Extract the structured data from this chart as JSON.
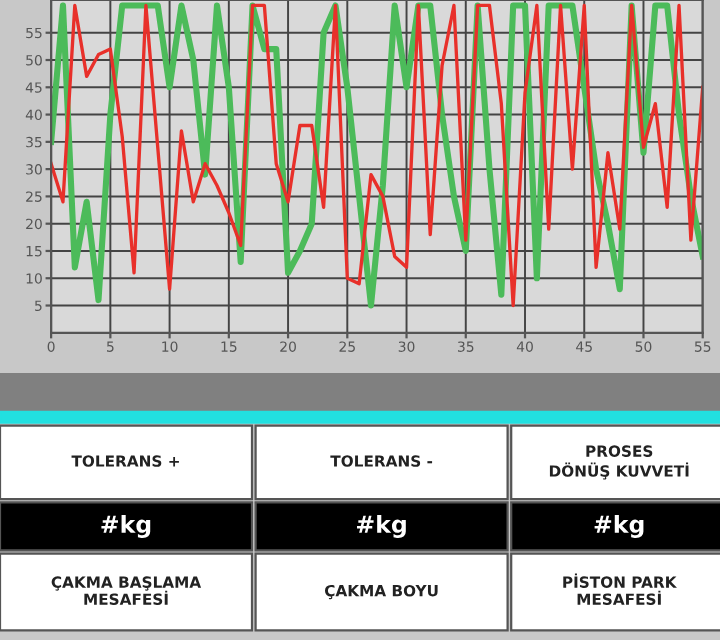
{
  "chart_data": {
    "type": "line",
    "x": [
      0,
      1,
      2,
      3,
      4,
      5,
      6,
      7,
      8,
      9,
      10,
      11,
      12,
      13,
      14,
      15,
      16,
      17,
      18,
      19,
      20,
      21,
      22,
      23,
      24,
      25,
      26,
      27,
      28,
      29,
      30,
      31,
      32,
      33,
      34,
      35,
      36,
      37,
      38,
      39,
      40,
      41,
      42,
      43,
      44,
      45,
      46,
      47,
      48,
      49,
      50,
      51,
      52,
      53,
      54,
      55
    ],
    "series": [
      {
        "color": "#4cbb5a",
        "values": [
          35,
          60,
          12,
          24,
          6,
          40,
          60,
          60,
          60,
          60,
          45,
          60,
          50,
          29,
          60,
          45,
          13,
          60,
          52,
          52,
          11,
          15,
          20,
          55,
          60,
          45,
          25,
          5,
          27,
          60,
          45,
          60,
          60,
          40,
          25,
          15,
          60,
          30,
          7,
          60,
          60,
          10,
          60,
          60,
          60,
          45,
          30,
          20,
          8,
          60,
          33,
          60,
          60,
          40,
          25,
          14
        ]
      },
      {
        "color": "#e8302a",
        "values": [
          31,
          24,
          60,
          47,
          51,
          52,
          36,
          11,
          60,
          34,
          8,
          37,
          24,
          31,
          27,
          22,
          16,
          60,
          60,
          31,
          24,
          38,
          38,
          23,
          60,
          10,
          9,
          29,
          25,
          14,
          12,
          60,
          18,
          49,
          60,
          17,
          60,
          60,
          42,
          5,
          44,
          60,
          19,
          60,
          30,
          60,
          12,
          33,
          19,
          60,
          34,
          42,
          23,
          60,
          17,
          45
        ]
      }
    ],
    "xlim": [
      0,
      55
    ],
    "ylim": [
      0,
      61
    ],
    "xticks": [
      0,
      5,
      10,
      15,
      20,
      25,
      30,
      35,
      40,
      45,
      50,
      55
    ],
    "yticks": [
      5,
      10,
      15,
      20,
      25,
      30,
      35,
      40,
      45,
      50,
      55
    ],
    "grid": true,
    "annotations": [
      "TOLERANS +",
      "TOLERANS -",
      "PROSES\nDÖNÜŞ KUVVETİ",
      "#kg",
      "#kg",
      "#kg",
      "ÇAKMA BAŞLAMA\nMESAFESİ",
      "ÇAKMA BOYU",
      "PİSTON PARK\nMESAFESİ"
    ]
  }
}
